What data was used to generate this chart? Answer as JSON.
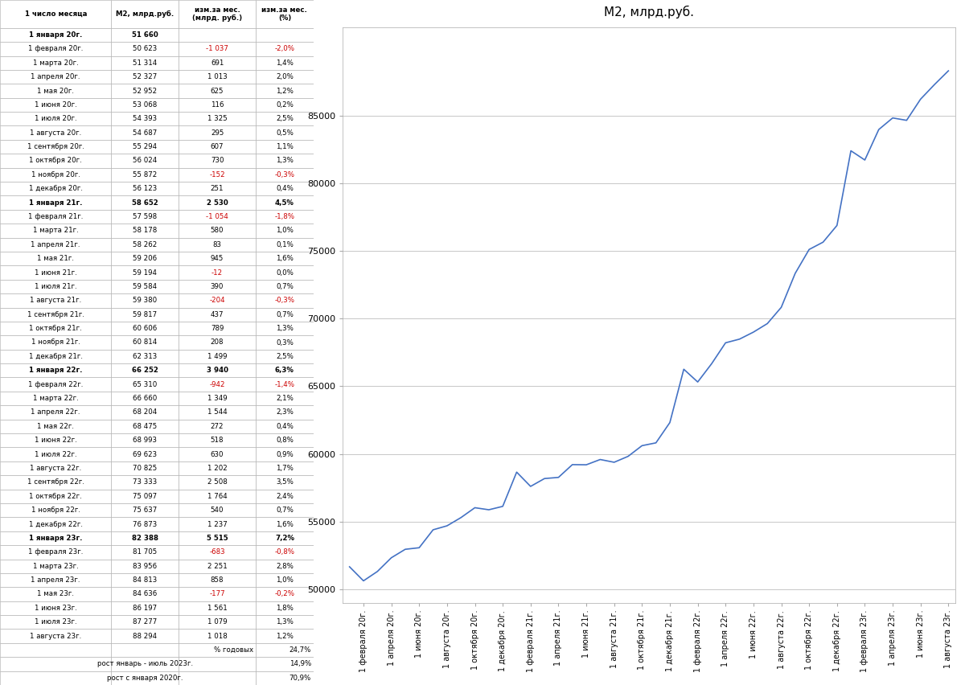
{
  "dates": [
    "1 января 20г.",
    "1 февраля 20г.",
    "1 марта 20г.",
    "1 апреля 20г.",
    "1 мая 20г.",
    "1 июня 20г.",
    "1 июля 20г.",
    "1 августа 20г.",
    "1 сентября 20г.",
    "1 октября 20г.",
    "1 ноября 20г.",
    "1 декабря 20г.",
    "1 января 21г.",
    "1 февраля 21г.",
    "1 марта 21г.",
    "1 апреля 21г.",
    "1 мая 21г.",
    "1 июня 21г.",
    "1 июля 21г.",
    "1 августа 21г.",
    "1 сентября 21г.",
    "1 октября 21г.",
    "1 ноября 21г.",
    "1 декабря 21г.",
    "1 января 22г.",
    "1 февраля 22г.",
    "1 марта 22г.",
    "1 апреля 22г.",
    "1 мая 22г.",
    "1 июня 22г.",
    "1 июля 22г.",
    "1 августа 22г.",
    "1 сентября 22г.",
    "1 октября 22г.",
    "1 ноября 22г.",
    "1 декабря 22г.",
    "1 января 23г.",
    "1 февраля 23г.",
    "1 марта 23г.",
    "1 апреля 23г.",
    "1 мая 23г.",
    "1 июня 23г.",
    "1 июля 23г.",
    "1 августа 23г."
  ],
  "m2_values": [
    51660,
    50623,
    51314,
    52327,
    52952,
    53068,
    54393,
    54687,
    55294,
    56024,
    55872,
    56123,
    58652,
    57598,
    58178,
    58262,
    59206,
    59194,
    59584,
    59380,
    59817,
    60606,
    60814,
    62313,
    66252,
    65310,
    66660,
    68204,
    68475,
    68993,
    69623,
    70825,
    73333,
    75097,
    75637,
    76873,
    82388,
    81705,
    83956,
    84813,
    84636,
    86197,
    87277,
    88294
  ],
  "change_rub": [
    null,
    -1037,
    691,
    1013,
    625,
    116,
    1325,
    295,
    607,
    730,
    -152,
    251,
    2530,
    -1054,
    580,
    83,
    945,
    -12,
    390,
    -204,
    437,
    789,
    208,
    1499,
    3940,
    -942,
    1349,
    1544,
    272,
    518,
    630,
    1202,
    2508,
    1764,
    540,
    1237,
    5515,
    -683,
    2251,
    858,
    -177,
    1561,
    1079,
    1018
  ],
  "change_pct": [
    null,
    -2.0,
    1.4,
    2.0,
    1.2,
    0.2,
    2.5,
    0.5,
    1.1,
    1.3,
    -0.3,
    0.4,
    4.5,
    -1.8,
    1.0,
    0.1,
    1.6,
    0.0,
    0.7,
    -0.3,
    0.7,
    1.3,
    0.3,
    2.5,
    6.3,
    -1.4,
    2.1,
    2.3,
    0.4,
    0.8,
    0.9,
    1.7,
    3.5,
    2.4,
    0.7,
    1.6,
    7.2,
    -0.8,
    2.8,
    1.0,
    -0.2,
    1.8,
    1.3,
    1.2
  ],
  "chart_title": "М2, млрд.руб.",
  "line_color": "#4472C4",
  "background_color": "#FFFFFF",
  "grid_color": "#BEBEBE",
  "bold_rows": [
    0,
    12,
    24,
    36
  ],
  "yticks": [
    50000,
    55000,
    60000,
    65000,
    70000,
    75000,
    80000,
    85000
  ],
  "ylim": [
    49000,
    91500
  ],
  "summary": [
    [
      "",
      "",
      "% годовых",
      "24,7%"
    ],
    [
      "",
      "рост январь - июль 2023г.",
      "",
      "14,9%"
    ],
    [
      "",
      "рост с января 2020г.",
      "",
      "70,9%"
    ]
  ]
}
